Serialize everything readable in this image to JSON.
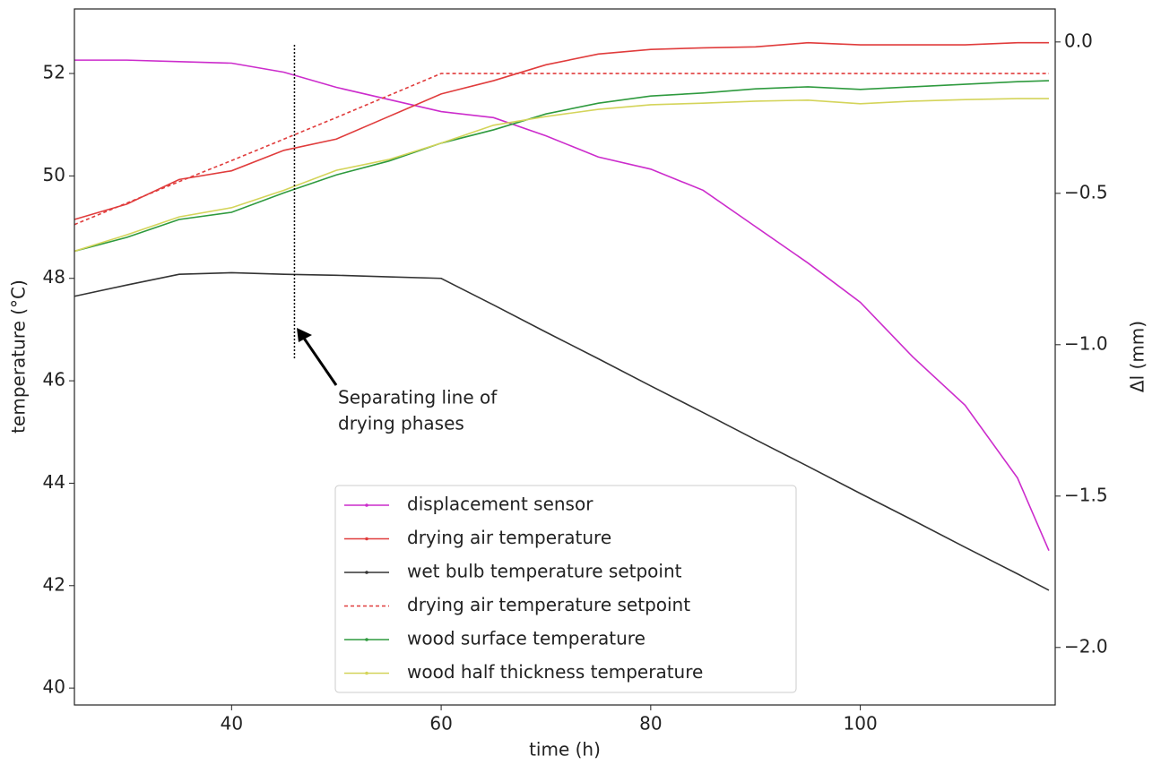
{
  "chart_data": {
    "type": "line",
    "x": [
      25,
      30,
      35,
      40,
      45,
      50,
      55,
      60,
      65,
      70,
      75,
      80,
      85,
      90,
      95,
      100,
      105,
      110,
      115,
      118
    ],
    "xlabel": "time (h)",
    "ylabel": "temperature (°C)",
    "y2label": "Δl (mm)",
    "xlim": [
      25,
      118.6
    ],
    "ylim": [
      39.67,
      53.26
    ],
    "y2lim": [
      -2.19,
      0.109
    ],
    "xticks": [
      40,
      60,
      80,
      100
    ],
    "yticks": [
      40,
      42,
      44,
      46,
      48,
      50,
      52
    ],
    "y2ticks": [
      {
        "value": -2.0,
        "label": "−2.0"
      },
      {
        "value": -1.5,
        "label": "−1.5"
      },
      {
        "value": -1.0,
        "label": "−1.0"
      },
      {
        "value": -0.5,
        "label": "−0.5"
      },
      {
        "value": 0.0,
        "label": "0.0"
      }
    ],
    "vline_x": 46,
    "annotation": [
      "Separating line of",
      "drying phases"
    ],
    "legend": "lower center",
    "series": [
      {
        "name": "displacement sensor",
        "color": "#cc2ccc",
        "axis": "y2",
        "marker": true,
        "values": [
          -0.06,
          -0.06,
          -0.065,
          -0.07,
          -0.1,
          -0.15,
          -0.19,
          -0.23,
          -0.25,
          -0.31,
          -0.38,
          -0.42,
          -0.49,
          -0.61,
          -0.73,
          -0.86,
          -1.04,
          -1.2,
          -1.44,
          -1.68
        ]
      },
      {
        "name": "drying air temperature",
        "color": "#e03c3c",
        "marker": true,
        "values": [
          49.15,
          49.45,
          49.93,
          50.1,
          50.5,
          50.72,
          51.16,
          51.6,
          51.86,
          52.17,
          52.38,
          52.47,
          52.5,
          52.52,
          52.6,
          52.56,
          52.56,
          52.56,
          52.6,
          52.6
        ]
      },
      {
        "name": "wet bulb temperature setpoint",
        "color": "#333333",
        "marker": true,
        "values": [
          47.65,
          47.87,
          48.08,
          48.11,
          48.08,
          48.06,
          48.03,
          48.0,
          47.48,
          46.95,
          46.43,
          45.9,
          45.38,
          44.85,
          44.33,
          43.8,
          43.28,
          42.75,
          42.23,
          41.91
        ]
      },
      {
        "name": "drying air temperature setpoint",
        "color": "#e03c3c",
        "dashed": true,
        "values": [
          49.05,
          49.47,
          49.89,
          50.3,
          50.72,
          51.14,
          51.57,
          52.0,
          52.0,
          52.0,
          52.0,
          52.0,
          52.0,
          52.0,
          52.0,
          52.0,
          52.0,
          52.0,
          52.0,
          52.0
        ]
      },
      {
        "name": "wood surface temperature",
        "color": "#2e9a3e",
        "marker": true,
        "values": [
          48.53,
          48.8,
          49.15,
          49.29,
          49.67,
          50.02,
          50.29,
          50.64,
          50.9,
          51.21,
          51.42,
          51.56,
          51.62,
          51.7,
          51.74,
          51.69,
          51.74,
          51.79,
          51.84,
          51.86
        ]
      },
      {
        "name": "wood half thickness temperature",
        "color": "#d4d45a",
        "marker": true,
        "values": [
          48.53,
          48.85,
          49.2,
          49.38,
          49.72,
          50.11,
          50.32,
          50.64,
          50.99,
          51.16,
          51.3,
          51.39,
          51.42,
          51.46,
          51.48,
          51.41,
          51.46,
          51.49,
          51.51,
          51.51
        ]
      }
    ]
  }
}
